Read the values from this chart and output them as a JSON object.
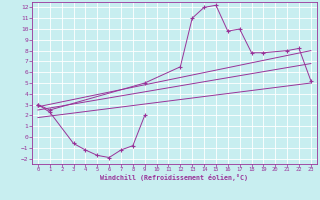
{
  "xlabel": "Windchill (Refroidissement éolien,°C)",
  "bg_color": "#c8eef0",
  "line_color": "#993399",
  "xlim": [
    -0.5,
    23.5
  ],
  "ylim": [
    -2.5,
    12.5
  ],
  "xticks": [
    0,
    1,
    2,
    3,
    4,
    5,
    6,
    7,
    8,
    9,
    10,
    11,
    12,
    13,
    14,
    15,
    16,
    17,
    18,
    19,
    20,
    21,
    22,
    23
  ],
  "yticks": [
    -2,
    -1,
    0,
    1,
    2,
    3,
    4,
    5,
    6,
    7,
    8,
    9,
    10,
    11,
    12
  ],
  "series1_x": [
    0,
    1,
    9,
    12,
    13,
    14,
    15,
    16,
    17,
    18,
    19,
    21,
    22,
    23
  ],
  "series1_y": [
    3.0,
    2.5,
    5.0,
    6.5,
    11.0,
    12.0,
    12.2,
    9.8,
    10.0,
    7.8,
    7.8,
    8.0,
    8.2,
    5.2
  ],
  "series2_x": [
    0,
    1,
    3,
    4,
    5,
    6,
    7,
    8,
    9
  ],
  "series2_y": [
    3.0,
    2.3,
    -0.6,
    -1.2,
    -1.7,
    -1.9,
    -1.2,
    -0.8,
    2.0
  ],
  "line1_x": [
    0,
    23
  ],
  "line1_y": [
    2.5,
    6.8
  ],
  "line2_x": [
    0,
    23
  ],
  "line2_y": [
    1.8,
    5.0
  ],
  "line3_x": [
    0,
    23
  ],
  "line3_y": [
    2.8,
    8.0
  ]
}
